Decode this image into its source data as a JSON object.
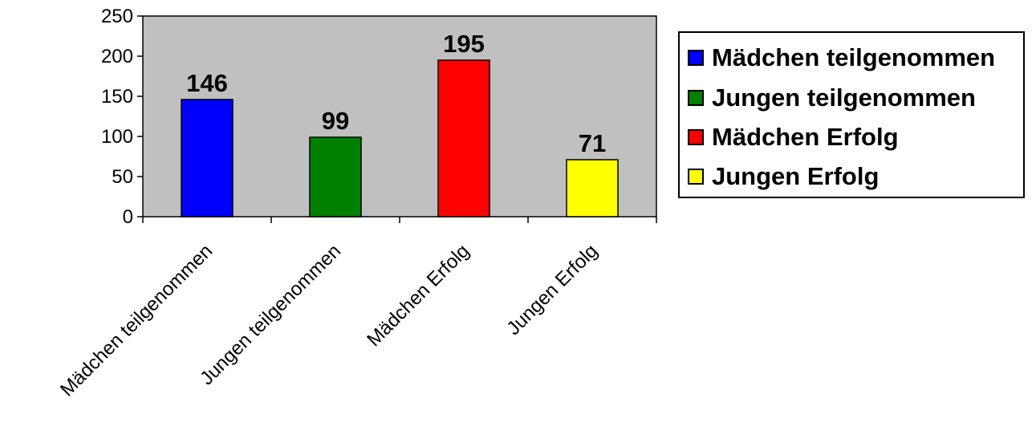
{
  "chart_data": {
    "type": "bar",
    "categories": [
      "Mädchen teilgenommen",
      "Jungen teilgenommen",
      "Mädchen Erfolg",
      "Jungen Erfolg"
    ],
    "values": [
      146,
      99,
      195,
      71
    ],
    "colors": [
      "#0000FF",
      "#008000",
      "#FF0000",
      "#FFFF00"
    ],
    "plot_background": "#C0C0C0",
    "ylim": [
      0,
      250
    ],
    "yticks": [
      0,
      50,
      100,
      150,
      200,
      250
    ],
    "data_labels": [
      "146",
      "99",
      "195",
      "71"
    ],
    "legend": {
      "position": "right",
      "entries": [
        "Mädchen teilgenommen",
        "Jungen teilgenommen",
        "Mädchen Erfolg",
        "Jungen Erfolg"
      ]
    },
    "grid": false
  }
}
